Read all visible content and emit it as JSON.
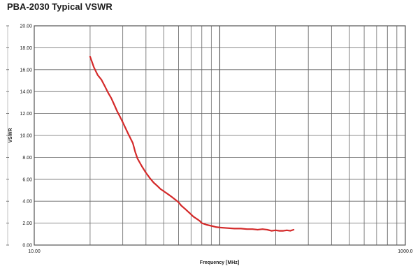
{
  "chart_data": {
    "type": "line",
    "title": "PBA-2030 Typical VSWR",
    "xlabel": "Frequency [MHz]",
    "ylabel": "VSWR",
    "x_scale": "log",
    "xlim": [
      10,
      1000
    ],
    "ylim": [
      0,
      20
    ],
    "x_tick_labels": [
      "10.00",
      "1000.0"
    ],
    "y_tick_labels": [
      "0.00",
      "2.00",
      "4.00",
      "6.00",
      "8.00",
      "10.00",
      "12.00",
      "14.00",
      "16.00",
      "18.00",
      "20.00"
    ],
    "grid": true,
    "series": [
      {
        "color": "#d42a2a",
        "x": [
          20,
          21,
          22,
          23,
          24,
          25,
          26,
          27,
          28,
          29,
          30,
          32,
          34,
          35,
          36,
          38,
          40,
          42,
          44,
          46,
          48,
          50,
          52,
          55,
          58,
          60,
          62,
          65,
          68,
          70,
          72,
          75,
          78,
          80,
          85,
          90,
          95,
          100,
          110,
          120,
          130,
          140,
          150,
          160,
          170,
          180,
          190,
          200,
          210,
          220,
          230,
          240,
          250
        ],
        "y": [
          17.2,
          16.2,
          15.5,
          15.1,
          14.5,
          13.9,
          13.4,
          12.8,
          12.2,
          11.7,
          11.2,
          10.2,
          9.3,
          8.5,
          7.9,
          7.2,
          6.6,
          6.1,
          5.7,
          5.4,
          5.1,
          4.9,
          4.7,
          4.4,
          4.1,
          3.9,
          3.6,
          3.3,
          3.0,
          2.8,
          2.6,
          2.4,
          2.2,
          2.0,
          1.85,
          1.75,
          1.65,
          1.6,
          1.55,
          1.5,
          1.5,
          1.45,
          1.45,
          1.4,
          1.45,
          1.4,
          1.3,
          1.35,
          1.3,
          1.3,
          1.35,
          1.3,
          1.4
        ]
      }
    ]
  }
}
